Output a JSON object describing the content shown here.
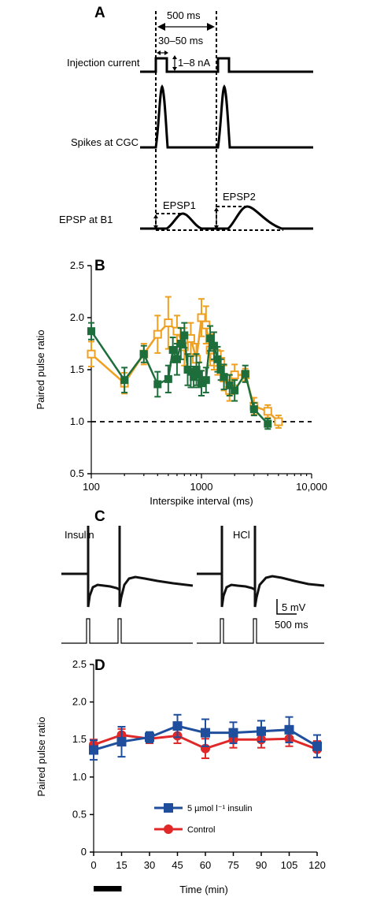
{
  "panels": {
    "A": {
      "letter": "A",
      "interval_label": "500 ms",
      "width_label": "30–50 ms",
      "amp_label": "1–8 nA",
      "row1": "Injection current",
      "row2": "Spikes at CGC",
      "row3": "EPSP at B1",
      "epsp1": "EPSP1",
      "epsp2": "EPSP2"
    },
    "B": {
      "letter": "B"
    },
    "C": {
      "letter": "C",
      "left_label": "Insulin",
      "right_label": "HCl",
      "scale_v": "5 mV",
      "scale_t": "500 ms"
    },
    "D": {
      "letter": "D"
    }
  },
  "colors": {
    "green": "#1e6e3c",
    "orange": "#f0a020",
    "blue": "#1f4e9c",
    "red": "#e02828"
  },
  "chart_data": [
    {
      "panel": "B",
      "type": "line",
      "xlabel": "Interspike interval (ms)",
      "ylabel": "Paired pulse ratio",
      "xscale": "log",
      "xlim": [
        100,
        10000
      ],
      "ylim": [
        0.5,
        2.5
      ],
      "xticks": [
        100,
        1000,
        10000
      ],
      "xtick_labels": [
        "100",
        "1000",
        "10,000"
      ],
      "yticks": [
        0.5,
        1.0,
        1.5,
        2.0,
        2.5
      ],
      "ytick_labels": [
        "0.5",
        "1.0",
        "1.5",
        "2.0",
        "2.5"
      ],
      "reference_line": 1.0,
      "series": [
        {
          "color": "#1e6e3c",
          "marker": "filled-square",
          "x": [
            100,
            200,
            300,
            400,
            500,
            550,
            600,
            650,
            700,
            750,
            800,
            850,
            900,
            950,
            1000,
            1100,
            1200,
            1300,
            1400,
            1500,
            1600,
            1800,
            2000,
            2500,
            3000,
            4000
          ],
          "y": [
            1.87,
            1.4,
            1.65,
            1.36,
            1.41,
            1.69,
            1.6,
            1.75,
            1.83,
            1.5,
            1.48,
            1.43,
            1.5,
            1.45,
            1.37,
            1.4,
            1.8,
            1.73,
            1.6,
            1.5,
            1.43,
            1.35,
            1.3,
            1.46,
            1.12,
            0.98
          ],
          "err": [
            0.08,
            0.12,
            0.08,
            0.12,
            0.13,
            0.12,
            0.15,
            0.15,
            0.12,
            0.15,
            0.15,
            0.1,
            0.15,
            0.12,
            0.12,
            0.12,
            0.12,
            0.13,
            0.12,
            0.1,
            0.12,
            0.1,
            0.1,
            0.08,
            0.06,
            0.05
          ]
        },
        {
          "color": "#f0a020",
          "marker": "open-square",
          "x": [
            100,
            200,
            300,
            400,
            500,
            600,
            700,
            800,
            900,
            1000,
            1100,
            1200,
            1300,
            1400,
            1500,
            1600,
            1800,
            2000,
            2500,
            3000,
            4000,
            5000
          ],
          "y": [
            1.65,
            1.37,
            1.65,
            1.84,
            1.95,
            1.87,
            1.72,
            1.8,
            1.6,
            2.0,
            1.93,
            1.69,
            1.62,
            1.57,
            1.58,
            1.42,
            1.3,
            1.45,
            1.45,
            1.15,
            1.1,
            1.0
          ],
          "err": [
            0.12,
            0.1,
            0.1,
            0.18,
            0.25,
            0.15,
            0.18,
            0.15,
            0.15,
            0.18,
            0.18,
            0.15,
            0.12,
            0.12,
            0.1,
            0.12,
            0.1,
            0.1,
            0.06,
            0.08,
            0.06,
            0.06
          ]
        }
      ]
    },
    {
      "panel": "D",
      "type": "line",
      "xlabel": "Time (min)",
      "ylabel": "Paired pulse ratio",
      "xlim": [
        0,
        120
      ],
      "ylim": [
        0,
        2.5
      ],
      "xticks": [
        0,
        15,
        30,
        45,
        60,
        75,
        90,
        105,
        120
      ],
      "xtick_labels": [
        "0",
        "15",
        "30",
        "45",
        "60",
        "75",
        "90",
        "105",
        "120"
      ],
      "yticks": [
        0,
        0.5,
        1.0,
        1.5,
        2.0,
        2.5
      ],
      "ytick_labels": [
        "0",
        "0.5",
        "1.0",
        "1.5",
        "2.0",
        "2.5"
      ],
      "legend": "bottom-center",
      "bar_annotation": {
        "start": 0,
        "end": 15
      },
      "series": [
        {
          "name": "5 µmol l⁻¹ insulin",
          "color": "#1f4e9c",
          "marker": "square",
          "x": [
            0,
            15,
            30,
            45,
            60,
            75,
            90,
            105,
            120
          ],
          "y": [
            1.36,
            1.47,
            1.53,
            1.68,
            1.59,
            1.59,
            1.61,
            1.63,
            1.41
          ],
          "err": [
            0.13,
            0.2,
            0.07,
            0.15,
            0.18,
            0.14,
            0.14,
            0.17,
            0.15
          ]
        },
        {
          "name": "Control",
          "color": "#e02828",
          "marker": "circle",
          "x": [
            0,
            15,
            30,
            45,
            60,
            75,
            90,
            105,
            120
          ],
          "y": [
            1.43,
            1.56,
            1.51,
            1.55,
            1.38,
            1.5,
            1.5,
            1.51,
            1.37
          ],
          "err": [
            0.07,
            0.08,
            0.06,
            0.1,
            0.13,
            0.11,
            0.11,
            0.1,
            0.11
          ]
        }
      ]
    }
  ]
}
